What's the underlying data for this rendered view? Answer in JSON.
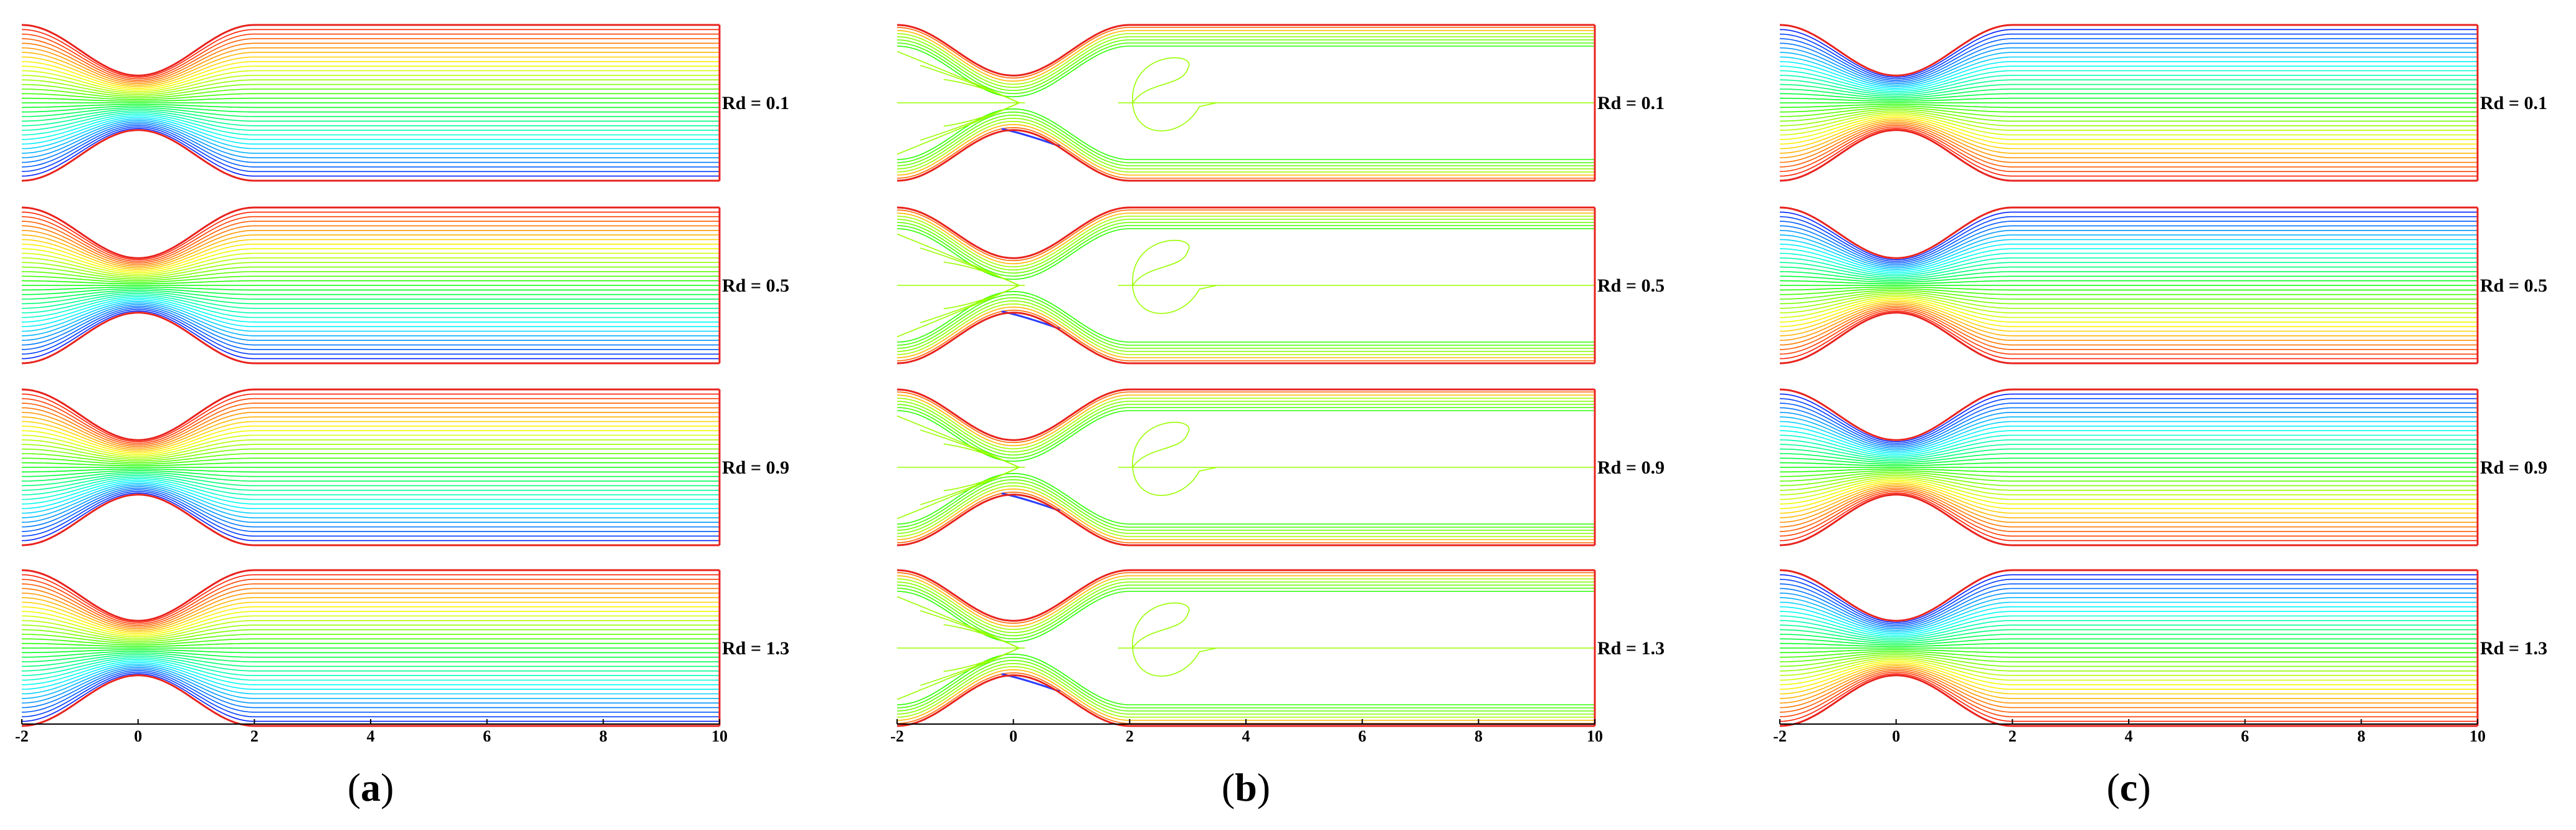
{
  "figure": {
    "panels": [
      {
        "id": "a",
        "caption_open": "(",
        "caption_letter": "a",
        "caption_close": ")",
        "pattern": "stream",
        "rows": [
          {
            "label": "Rd = 0.1"
          },
          {
            "label": "Rd = 0.5"
          },
          {
            "label": "Rd = 0.9"
          },
          {
            "label": "Rd = 1.3"
          }
        ]
      },
      {
        "id": "b",
        "caption_open": "(",
        "caption_letter": "b",
        "caption_close": ")",
        "pattern": "vorticity",
        "rows": [
          {
            "label": "Rd = 0.1"
          },
          {
            "label": "Rd = 0.5"
          },
          {
            "label": "Rd = 0.9"
          },
          {
            "label": "Rd = 1.3"
          }
        ]
      },
      {
        "id": "c",
        "caption_open": "(",
        "caption_letter": "c",
        "caption_close": ")",
        "pattern": "temperature",
        "rows": [
          {
            "label": "Rd = 0.1"
          },
          {
            "label": "Rd = 0.5"
          },
          {
            "label": "Rd = 0.9"
          },
          {
            "label": "Rd = 1.3"
          }
        ]
      }
    ],
    "x_axis": {
      "range": [
        -2,
        10
      ],
      "ticks": [
        "-2",
        "0",
        "2",
        "4",
        "6",
        "8",
        "10"
      ]
    },
    "geometry_domain": {
      "throat_center": 0,
      "taper_end": 2
    },
    "colors": {
      "wall": "#e8231e",
      "palette": "rainbow (red to blue)"
    }
  }
}
